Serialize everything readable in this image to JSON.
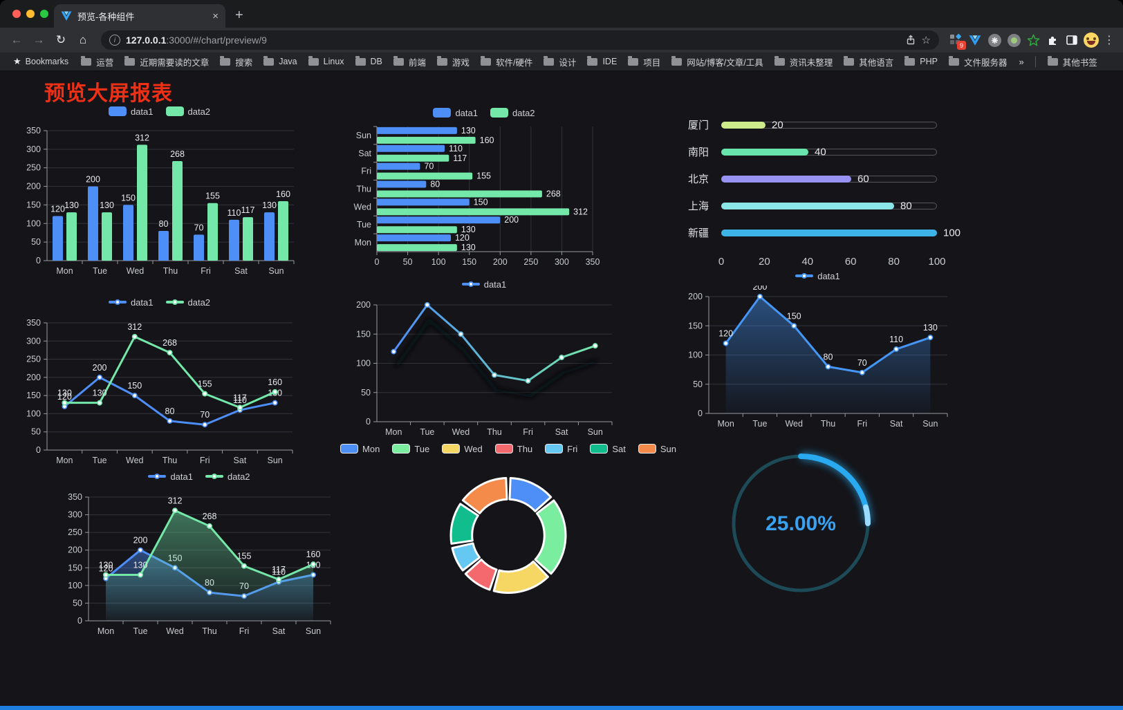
{
  "browser": {
    "tab": {
      "title": "预览-各种组件"
    },
    "icons": {
      "back": "←",
      "forward": "→",
      "reload": "↻",
      "home": "⌂",
      "star_outline": "☆",
      "bookmarks_star": "★",
      "overflow_chevron": "»",
      "menu_kebab": "⋮",
      "close": "×",
      "new_tab": "+",
      "info": "i"
    },
    "url": {
      "host": "127.0.0.1",
      "rest": ":3000/#/chart/preview/9"
    },
    "extension_badge": "9",
    "bookmarks_label": "Bookmarks",
    "bookmarks": [
      "运营",
      "近期需要读的文章",
      "搜索",
      "Java",
      "Linux",
      "DB",
      "前端",
      "游戏",
      "软件/硬件",
      "设计",
      "IDE",
      "项目",
      "网站/博客/文章/工具",
      "资讯未整理",
      "其他语言",
      "PHP",
      "文件服务器"
    ],
    "other_bookmarks": "其他书签"
  },
  "page": {
    "title": "预览大屏报表",
    "title_color": "#ee3016",
    "bottom_bar_color": "#1e7fe0"
  },
  "theme": {
    "background": "#141419",
    "axis_label": "#c9cbd2",
    "axis_line": "#9a9ba3",
    "grid_line": "#32343c",
    "value_label": "#e9eaee",
    "legend_text": "#d0d1d6"
  },
  "chart_data": [
    {
      "id": "bar-vertical",
      "type": "bar",
      "categories": [
        "Mon",
        "Tue",
        "Wed",
        "Thu",
        "Fri",
        "Sat",
        "Sun"
      ],
      "series": [
        {
          "name": "data1",
          "color": "#4e8ef7",
          "values": [
            120,
            200,
            150,
            80,
            70,
            110,
            130
          ]
        },
        {
          "name": "data2",
          "color": "#73e8a9",
          "values": [
            130,
            130,
            312,
            268,
            155,
            117,
            160
          ]
        }
      ],
      "ylim": [
        0,
        350
      ],
      "ytick": 50,
      "value_labels": true,
      "legend_position": "top"
    },
    {
      "id": "bar-horizontal",
      "type": "hbar",
      "categories": [
        "Mon",
        "Tue",
        "Wed",
        "Thu",
        "Fri",
        "Sat",
        "Sun"
      ],
      "series": [
        {
          "name": "data1",
          "color": "#4e8ef7",
          "values": [
            120,
            200,
            150,
            80,
            70,
            110,
            130
          ]
        },
        {
          "name": "data2",
          "color": "#73e8a9",
          "values": [
            130,
            130,
            312,
            268,
            155,
            117,
            160
          ]
        }
      ],
      "xlim": [
        0,
        350
      ],
      "xtick": 50,
      "value_labels": true,
      "legend_position": "top"
    },
    {
      "id": "progress-list",
      "type": "progress",
      "max": 100,
      "items": [
        {
          "label": "厦门",
          "value": 20,
          "color": "#cdeb8b"
        },
        {
          "label": "南阳",
          "value": 40,
          "color": "#68e4ac"
        },
        {
          "label": "北京",
          "value": 60,
          "color": "#9793f3"
        },
        {
          "label": "上海",
          "value": 80,
          "color": "#8be6e6"
        },
        {
          "label": "新疆",
          "value": 100,
          "color": "#3eb3e8"
        }
      ],
      "axis_ticks": [
        0,
        20,
        40,
        60,
        80,
        100
      ]
    },
    {
      "id": "line-two-series",
      "type": "line",
      "categories": [
        "Mon",
        "Tue",
        "Wed",
        "Thu",
        "Fri",
        "Sat",
        "Sun"
      ],
      "series": [
        {
          "name": "data1",
          "color": "#4e8ef7",
          "values": [
            120,
            200,
            150,
            80,
            70,
            110,
            130
          ],
          "area": false
        },
        {
          "name": "data2",
          "color": "#73e8a9",
          "values": [
            130,
            130,
            312,
            268,
            155,
            117,
            160
          ],
          "area": false
        }
      ],
      "ylim": [
        0,
        350
      ],
      "ytick": 50,
      "value_labels": true,
      "legend_position": "top"
    },
    {
      "id": "line-gradient",
      "type": "line",
      "categories": [
        "Mon",
        "Tue",
        "Wed",
        "Thu",
        "Fri",
        "Sat",
        "Sun"
      ],
      "series": [
        {
          "name": "data1",
          "color": "#4e8ef7",
          "gradient": [
            "#4e8ef7",
            "#73e8a9"
          ],
          "values": [
            120,
            200,
            150,
            80,
            70,
            110,
            130
          ],
          "area": false
        }
      ],
      "ylim": [
        0,
        200
      ],
      "ytick": 50,
      "value_labels": false,
      "shadow": true,
      "legend_position": "top"
    },
    {
      "id": "area-single",
      "type": "line",
      "categories": [
        "Mon",
        "Tue",
        "Wed",
        "Thu",
        "Fri",
        "Sat",
        "Sun"
      ],
      "series": [
        {
          "name": "data1",
          "color": "#4596f5",
          "values": [
            120,
            200,
            150,
            80,
            70,
            110,
            130
          ],
          "area": true
        }
      ],
      "ylim": [
        0,
        200
      ],
      "ytick": 50,
      "value_labels": true,
      "legend_position": "top"
    },
    {
      "id": "line-two-area",
      "type": "line",
      "categories": [
        "Mon",
        "Tue",
        "Wed",
        "Thu",
        "Fri",
        "Sat",
        "Sun"
      ],
      "series": [
        {
          "name": "data1",
          "color": "#4e8ef7",
          "values": [
            120,
            200,
            150,
            80,
            70,
            110,
            130
          ],
          "area": true
        },
        {
          "name": "data2",
          "color": "#73e8a9",
          "values": [
            130,
            130,
            312,
            268,
            155,
            117,
            160
          ],
          "area": true
        }
      ],
      "ylim": [
        0,
        350
      ],
      "ytick": 50,
      "value_labels": true,
      "legend_position": "top"
    },
    {
      "id": "donut",
      "type": "pie",
      "inner_radius_ratio": 0.63,
      "items": [
        {
          "label": "Mon",
          "value": 120,
          "color": "#4e8ef7"
        },
        {
          "label": "Tue",
          "value": 200,
          "color": "#7bed9f"
        },
        {
          "label": "Wed",
          "value": 150,
          "color": "#f7d764"
        },
        {
          "label": "Thu",
          "value": 80,
          "color": "#f4696d"
        },
        {
          "label": "Fri",
          "value": 70,
          "color": "#64c8f2"
        },
        {
          "label": "Sat",
          "value": 110,
          "color": "#12bd8d"
        },
        {
          "label": "Sun",
          "value": 130,
          "color": "#f58b4a"
        }
      ],
      "legend_position": "top"
    },
    {
      "id": "gauge",
      "type": "gauge",
      "percent": 25,
      "value_label": "25.00%",
      "arc_color": "#29a9ef",
      "tail_color": "#9bdbff",
      "track_color": "#1d4a57",
      "text_color": "#3aa3f1"
    }
  ]
}
